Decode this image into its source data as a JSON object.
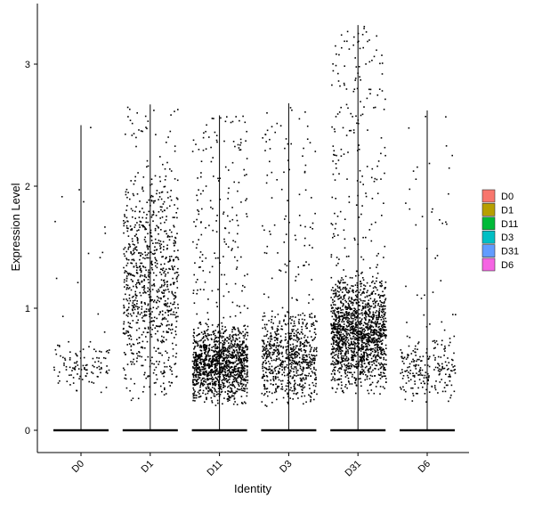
{
  "chart_data": {
    "type": "violin",
    "xlabel": "Identity",
    "ylabel": "Expression Level",
    "categories": [
      "D0",
      "D1",
      "D11",
      "D3",
      "D31",
      "D6"
    ],
    "y_ticks": [
      "0",
      "1",
      "2",
      "3"
    ],
    "ylim": [
      -0.2,
      3.45
    ],
    "legend_position": "right",
    "legend": [
      {
        "name": "D0",
        "color": "#F8766D"
      },
      {
        "name": "D1",
        "color": "#B79F00"
      },
      {
        "name": "D11",
        "color": "#00BA38"
      },
      {
        "name": "D3",
        "color": "#00BFC4"
      },
      {
        "name": "D31",
        "color": "#619CFF"
      },
      {
        "name": "D6",
        "color": "#F564E3"
      }
    ],
    "series": [
      {
        "name": "D0",
        "max": 2.5,
        "point_count": 120,
        "dense_low": 0.25,
        "dense_high": 0.8
      },
      {
        "name": "D1",
        "max": 2.67,
        "point_count": 900,
        "dense_low": 0.25,
        "dense_high": 2.2
      },
      {
        "name": "D11",
        "max": 2.58,
        "point_count": 1400,
        "dense_low": 0.2,
        "dense_high": 0.9
      },
      {
        "name": "D3",
        "max": 2.68,
        "point_count": 800,
        "dense_low": 0.2,
        "dense_high": 1.0
      },
      {
        "name": "D31",
        "max": 3.32,
        "point_count": 1700,
        "dense_low": 0.3,
        "dense_high": 1.3
      },
      {
        "name": "D6",
        "max": 2.62,
        "point_count": 250,
        "dense_low": 0.2,
        "dense_high": 0.8
      }
    ]
  }
}
